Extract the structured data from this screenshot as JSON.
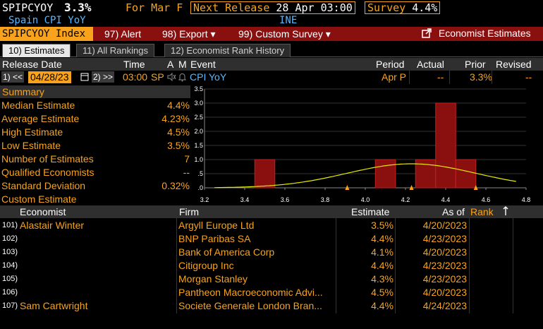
{
  "header": {
    "ticker": "SPIPCYOY",
    "value": "3.3%",
    "for_label": "For Mar F",
    "next_release_label": "Next Release",
    "next_release_value": "28 Apr 03:00",
    "survey_label": "Survey",
    "survey_value": "4.4%",
    "name": "Spain CPI YoY",
    "source": "INE"
  },
  "toolbar": {
    "index_label": "SPIPCYOY Index",
    "alert": "97) Alert",
    "export": "98) Export ▾",
    "custom_survey": "99) Custom Survey ▾",
    "economist_estimates": "Economist Estimates"
  },
  "tabs": [
    "10) Estimates",
    "11) All Rankings",
    "12) Economist Rank History"
  ],
  "event_header": {
    "release_date": "Release Date",
    "time": "Time",
    "a": "A",
    "m": "M",
    "event": "Event",
    "period": "Period",
    "actual": "Actual",
    "prior": "Prior",
    "revised": "Revised"
  },
  "event_row": {
    "prev_btn": "1) <<",
    "date": "04/28/23",
    "next_btn": "2) >>",
    "time": "03:00",
    "tz": "SP",
    "event": "CPI YoY",
    "period": "Apr P",
    "actual": "--",
    "prior": "3.3%",
    "revised": "--"
  },
  "summary": {
    "title": "Summary",
    "rows": [
      {
        "label": "Median Estimate",
        "value": "4.4%"
      },
      {
        "label": "Average Estimate",
        "value": "4.23%"
      },
      {
        "label": "High Estimate",
        "value": "4.5%"
      },
      {
        "label": "Low Estimate",
        "value": "3.5%"
      },
      {
        "label": "Number of Estimates",
        "value": "7"
      },
      {
        "label": "Qualified Economists",
        "value": "--"
      },
      {
        "label": "Standard Deviation",
        "value": "0.32%"
      },
      {
        "label": "Custom Estimate",
        "value": ""
      }
    ]
  },
  "chart_data": {
    "type": "bar",
    "x_ticks": [
      "3.2",
      "3.4",
      "3.6",
      "3.8",
      "4.0",
      "4.2",
      "4.4",
      "4.6",
      "4.8"
    ],
    "y_ticks": [
      ".0",
      ".5",
      "1.0",
      "1.5",
      "2.0",
      "2.5",
      "3.0",
      "3.5"
    ],
    "xlim": [
      3.2,
      4.8
    ],
    "ylim": [
      0,
      3.5
    ],
    "bins": [
      {
        "x": 3.5,
        "count": 1
      },
      {
        "x": 4.1,
        "count": 1
      },
      {
        "x": 4.3,
        "count": 1
      },
      {
        "x": 4.4,
        "count": 3
      },
      {
        "x": 4.5,
        "count": 1
      }
    ],
    "bin_width": 0.1,
    "curve_mean": 4.23,
    "curve_sd": 0.32,
    "curve_peak": 0.85,
    "markers": [
      3.91,
      4.23,
      4.55
    ],
    "colors": {
      "bar": "#8a1010",
      "curve": "#e8e800",
      "marker": "#f8a31b"
    }
  },
  "table": {
    "headers": {
      "economist": "Economist",
      "firm": "Firm",
      "estimate": "Estimate",
      "as_of": "As of",
      "rank": "Rank"
    },
    "rows": [
      {
        "num": "101)",
        "economist": "Alastair Winter",
        "firm": "Argyll Europe Ltd",
        "estimate": "3.5%",
        "as_of": "4/20/2023"
      },
      {
        "num": "102)",
        "economist": "",
        "firm": "BNP Paribas SA",
        "estimate": "4.4%",
        "as_of": "4/23/2023"
      },
      {
        "num": "103)",
        "economist": "",
        "firm": "Bank of America Corp",
        "estimate": "4.1%",
        "as_of": "4/20/2023"
      },
      {
        "num": "104)",
        "economist": "",
        "firm": "Citigroup Inc",
        "estimate": "4.4%",
        "as_of": "4/23/2023"
      },
      {
        "num": "105)",
        "economist": "",
        "firm": "Morgan Stanley",
        "estimate": "4.3%",
        "as_of": "4/23/2023"
      },
      {
        "num": "106)",
        "economist": "",
        "firm": "Pantheon Macroeconomic Advi...",
        "estimate": "4.5%",
        "as_of": "4/20/2023"
      },
      {
        "num": "107)",
        "economist": "Sam Cartwright",
        "firm": "Societe Generale London Bran...",
        "estimate": "4.4%",
        "as_of": "4/24/2023"
      }
    ]
  }
}
